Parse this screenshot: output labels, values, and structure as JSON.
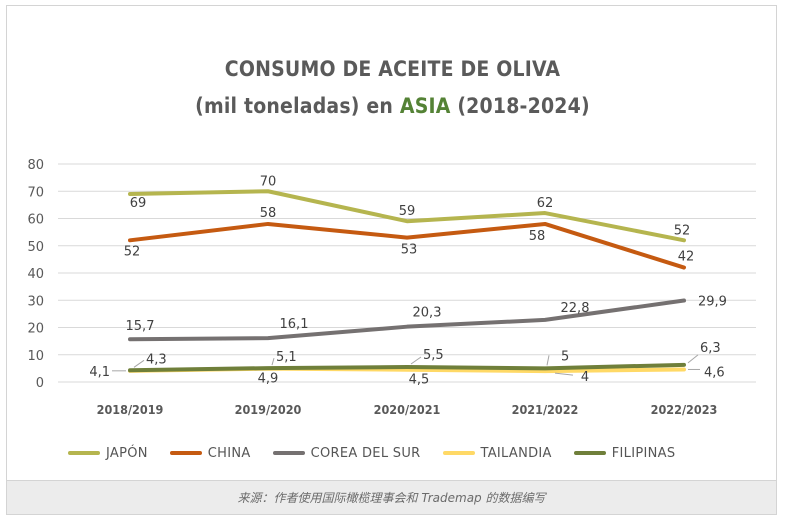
{
  "chart_data": {
    "type": "line",
    "title_line1": "CONSUMO DE ACEITE DE OLIVA",
    "title_line2_prefix": "(mil toneladas) en",
    "title_line2_accent": "ASIA",
    "title_line2_suffix": "(2018-2024)",
    "categories": [
      "2018/2019",
      "2019/2020",
      "2020/2021",
      "2021/2022",
      "2022/2023"
    ],
    "ylim": [
      0,
      80
    ],
    "yticks": [
      "0",
      "10",
      "20",
      "30",
      "40",
      "50",
      "60",
      "70",
      "80"
    ],
    "grid": true,
    "legend_position": "bottom",
    "series": [
      {
        "name": "JAPÓN",
        "color": "#b5b54f",
        "values": [
          69,
          70,
          59,
          62,
          52
        ],
        "labels": [
          "69",
          "70",
          "59",
          "62",
          "52"
        ]
      },
      {
        "name": "CHINA",
        "color": "#c55a11",
        "values": [
          52,
          58,
          53,
          58,
          42
        ],
        "labels": [
          "52",
          "58",
          "53",
          "58",
          "42"
        ]
      },
      {
        "name": "COREA DEL SUR",
        "color": "#757171",
        "values": [
          15.7,
          16.1,
          20.3,
          22.8,
          29.9
        ],
        "labels": [
          "15,7",
          "16,1",
          "20,3",
          "22,8",
          "29,9"
        ]
      },
      {
        "name": "TAILANDIA",
        "color": "#ffd966",
        "values": [
          4.1,
          4.9,
          4.5,
          4,
          4.6
        ],
        "labels": [
          "4,1",
          "4,9",
          "4,5",
          "4",
          "4,6"
        ]
      },
      {
        "name": "FILIPINAS",
        "color": "#6f7f3a",
        "values": [
          4.3,
          5.1,
          5.5,
          5,
          6.3
        ],
        "labels": [
          "4,3",
          "5,1",
          "5,5",
          "5",
          "6,3"
        ]
      }
    ]
  },
  "caption": "来源：作者使用国际橄榄理事会和 Trademap 的数据编写"
}
